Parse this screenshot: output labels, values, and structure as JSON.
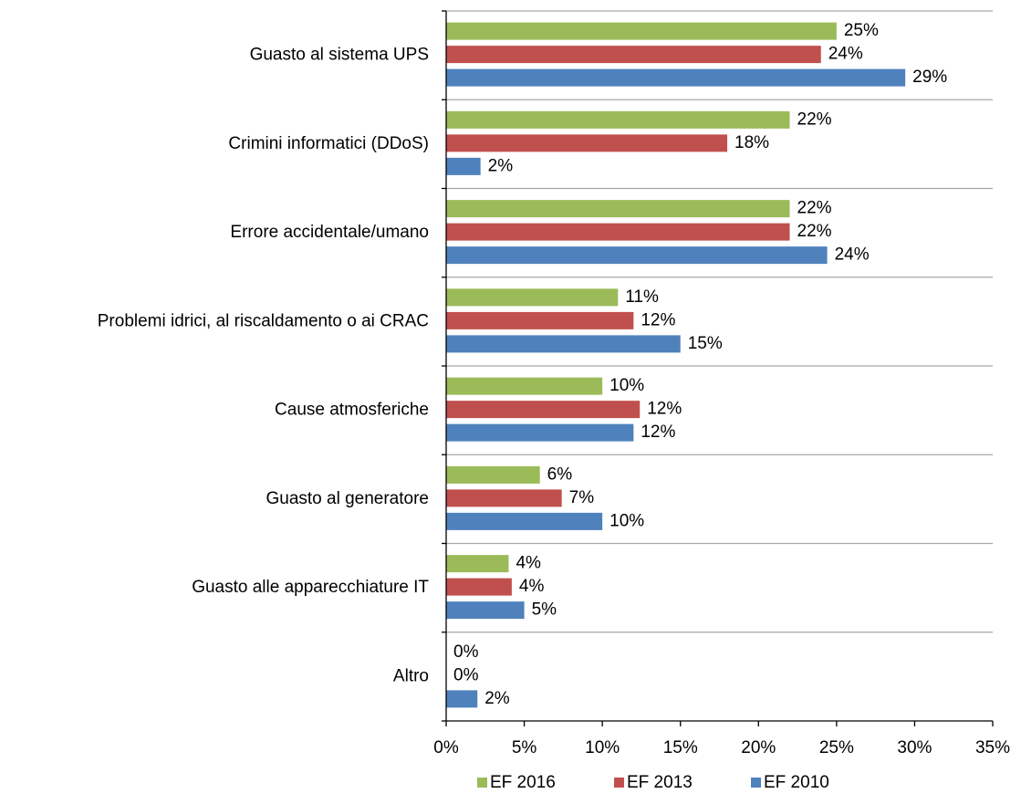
{
  "chart_data": {
    "type": "bar",
    "orientation": "horizontal",
    "categories": [
      "Guasto al sistema UPS",
      "Crimini informatici (DDoS)",
      "Errore accidentale/umano",
      "Problemi idrici, al riscaldamento o ai CRAC",
      "Cause atmosferiche",
      "Guasto al generatore",
      "Guasto alle apparecchiature IT",
      "Altro"
    ],
    "series": [
      {
        "name": "EF 2016",
        "color": "#9bbb59",
        "values": [
          25,
          22,
          22,
          11,
          10,
          6,
          4,
          0
        ],
        "value_labels": [
          "25%",
          "22%",
          "22%",
          "11%",
          "10%",
          "6%",
          "4%",
          "0%"
        ]
      },
      {
        "name": "EF 2013",
        "color": "#c0504d",
        "values": [
          24,
          18,
          22,
          12,
          12.4,
          7.4,
          4.2,
          0
        ],
        "value_labels": [
          "24%",
          "18%",
          "22%",
          "12%",
          "12%",
          "7%",
          "4%",
          "0%"
        ]
      },
      {
        "name": "EF 2010",
        "color": "#4f81bd",
        "values": [
          29.4,
          2.2,
          24.4,
          15,
          12,
          10,
          5,
          2
        ],
        "value_labels": [
          "29%",
          "2%",
          "24%",
          "15%",
          "12%",
          "10%",
          "5%",
          "2%"
        ]
      }
    ],
    "xlim": [
      0,
      35
    ],
    "xticks": [
      {
        "value": 0,
        "label": "0%"
      },
      {
        "value": 5,
        "label": "5%"
      },
      {
        "value": 10,
        "label": "10%"
      },
      {
        "value": 15,
        "label": "15%"
      },
      {
        "value": 20,
        "label": "20%"
      },
      {
        "value": 25,
        "label": "25%"
      },
      {
        "value": 30,
        "label": "30%"
      },
      {
        "value": 35,
        "label": "35%"
      }
    ],
    "legend": "bottom"
  }
}
